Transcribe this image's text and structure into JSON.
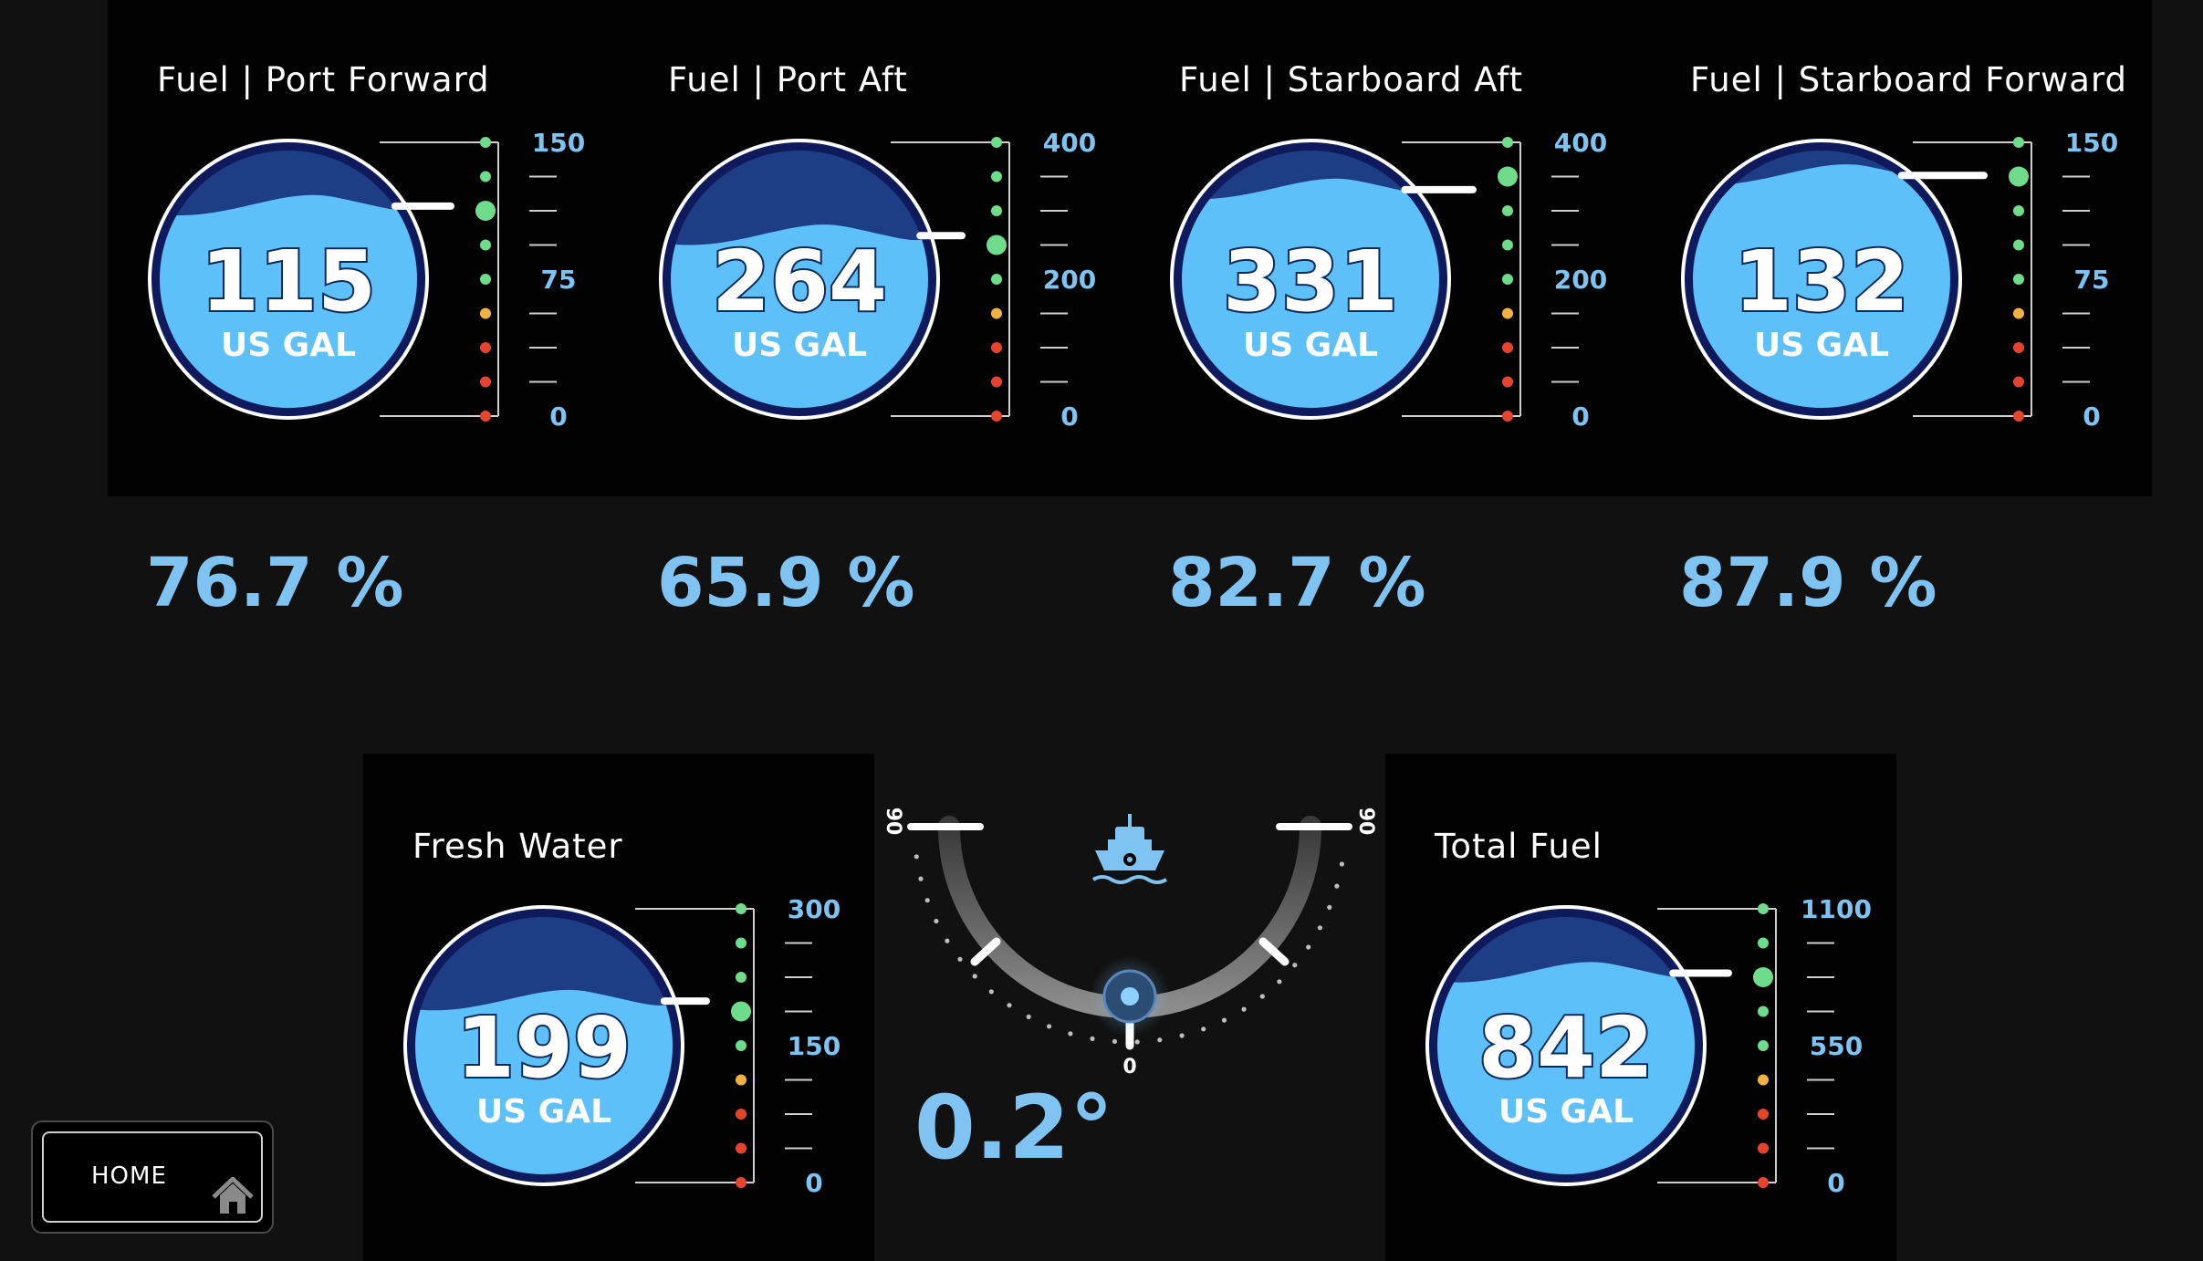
{
  "tanks": [
    {
      "id": "port-forward",
      "title": "Fuel | Port Forward",
      "value": "115",
      "unit": "US GAL",
      "percent": "76.7 %",
      "scale": {
        "max": "150",
        "mid": "75",
        "min": "0"
      },
      "level": 0.767
    },
    {
      "id": "port-aft",
      "title": "Fuel | Port Aft",
      "value": "264",
      "unit": "US GAL",
      "percent": "65.9 %",
      "scale": {
        "max": "400",
        "mid": "200",
        "min": "0"
      },
      "level": 0.659
    },
    {
      "id": "starboard-aft",
      "title": "Fuel | Starboard Aft",
      "value": "331",
      "unit": "US GAL",
      "percent": "82.7 %",
      "scale": {
        "max": "400",
        "mid": "200",
        "min": "0"
      },
      "level": 0.827
    },
    {
      "id": "starboard-forward",
      "title": "Fuel | Starboard Forward",
      "value": "132",
      "unit": "US GAL",
      "percent": "87.9 %",
      "scale": {
        "max": "150",
        "mid": "75",
        "min": "0"
      },
      "level": 0.879
    },
    {
      "id": "fresh-water",
      "title": "Fresh Water",
      "value": "199",
      "unit": "US GAL",
      "scale": {
        "max": "300",
        "mid": "150",
        "min": "0"
      },
      "level": 0.663
    },
    {
      "id": "total-fuel",
      "title": "Total Fuel",
      "value": "842",
      "unit": "US GAL",
      "scale": {
        "max": "1100",
        "mid": "550",
        "min": "0"
      },
      "level": 0.765
    }
  ],
  "trim": {
    "value": "0.2°",
    "angle": 0.2,
    "left_label": "90",
    "right_label": "90",
    "bottom_label": "0",
    "icon": "boat-icon"
  },
  "home": {
    "label": "HOME",
    "icon": "home-icon"
  },
  "colors": {
    "background": "#111111",
    "panel": "#020202",
    "accent": "#7ec3f2",
    "fluid_light": "#5ec0f8",
    "fluid_dark": "#1d3d84",
    "ring": "#0e1a5c",
    "dot_green": "#6fdc8c",
    "dot_amber": "#f2b23f",
    "dot_red": "#e5452f"
  }
}
